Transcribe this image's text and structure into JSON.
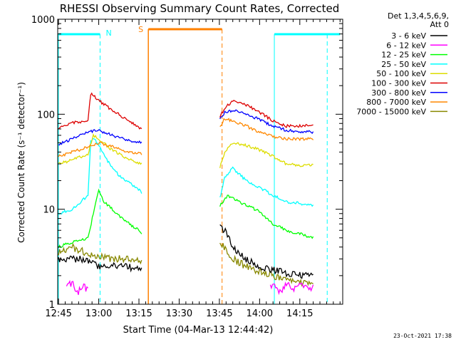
{
  "chart_data": {
    "type": "line",
    "title": "RHESSI Observing Summary Count Rates, Corrected",
    "xlabel": "Start Time (04-Mar-13 12:44:42)",
    "ylabel": "Corrected Count Rate (s⁻¹ detector⁻¹)",
    "yscale": "log",
    "ylim": [
      1,
      1000
    ],
    "x_ticks": [
      "12:45",
      "13:00",
      "13:15",
      "13:30",
      "13:45",
      "14:00",
      "14:15"
    ],
    "x_tick_minutes": [
      45,
      60,
      75,
      90,
      105,
      120,
      135
    ],
    "xlim_minutes": [
      44.7,
      151
    ],
    "y_ticks": [
      "1",
      "10",
      "100",
      "1000"
    ],
    "y_tick_values": [
      1,
      10,
      100,
      1000
    ],
    "legend_header": [
      "Det 1,3,4,5,6,9,",
      "Att 0"
    ],
    "legend_position": "right",
    "series": [
      {
        "name": "3 - 6 keV",
        "color": "#000000",
        "x": [
          45,
          55,
          60,
          70,
          76,
          105.2,
          108,
          110,
          115,
          120,
          125,
          130,
          135,
          140
        ],
        "y": [
          3.0,
          3.0,
          2.5,
          2.5,
          2.3,
          6.5,
          5.5,
          4.0,
          3.0,
          2.5,
          2.3,
          2.1,
          2.0,
          2.0
        ]
      },
      {
        "name": "6 - 12 keV",
        "color": "#ff00ff",
        "x": [
          48,
          50,
          52,
          54,
          56,
          124,
          126,
          128,
          130,
          132,
          134,
          136,
          138,
          140
        ],
        "y": [
          1.5,
          1.7,
          1.3,
          1.6,
          1.4,
          1.5,
          1.6,
          1.3,
          1.7,
          1.4,
          1.5,
          1.6,
          1.4,
          1.5
        ]
      },
      {
        "name": "12 - 25 keV",
        "color": "#00ff00",
        "x": [
          45,
          50,
          56,
          60,
          62,
          66,
          70,
          75,
          76,
          105.2,
          108,
          110,
          115,
          120,
          125,
          130,
          135,
          140
        ],
        "y": [
          4.0,
          4.5,
          5.0,
          16,
          12,
          9.5,
          7.5,
          6.0,
          5.6,
          11,
          14,
          13,
          11,
          9.5,
          7.0,
          6.0,
          5.5,
          5.0
        ]
      },
      {
        "name": "25 - 50 keV",
        "color": "#00ffff",
        "x": [
          45,
          50,
          56,
          57,
          58,
          60,
          63,
          66,
          70,
          74,
          76,
          105.2,
          107,
          110,
          115,
          120,
          125,
          130,
          135,
          140
        ],
        "y": [
          9.0,
          10,
          14,
          52,
          55,
          48,
          33,
          25,
          20,
          17,
          15,
          13,
          22,
          27,
          20,
          17,
          14,
          12,
          11.5,
          11
        ]
      },
      {
        "name": "50 - 100 keV",
        "color": "#dddd00",
        "x": [
          45,
          50,
          56,
          58,
          60,
          65,
          70,
          76,
          105.2,
          107,
          110,
          115,
          120,
          125,
          130,
          135,
          140
        ],
        "y": [
          30,
          33,
          38,
          60,
          55,
          42,
          35,
          30,
          28,
          40,
          50,
          47,
          42,
          36,
          30,
          29,
          29
        ]
      },
      {
        "name": "100 - 300 keV",
        "color": "#dd0000",
        "x": [
          45,
          50,
          56,
          57,
          60,
          65,
          70,
          76,
          105.2,
          107,
          110,
          115,
          120,
          125,
          130,
          135,
          140
        ],
        "y": [
          72,
          82,
          85,
          165,
          140,
          110,
          90,
          70,
          95,
          115,
          140,
          125,
          105,
          85,
          75,
          75,
          78
        ]
      },
      {
        "name": "300 - 800 keV",
        "color": "#0000ff",
        "x": [
          45,
          50,
          56,
          60,
          65,
          70,
          76,
          105.2,
          107,
          110,
          115,
          120,
          125,
          130,
          135,
          140
        ],
        "y": [
          48,
          55,
          65,
          68,
          60,
          54,
          50,
          90,
          105,
          110,
          100,
          88,
          75,
          68,
          65,
          65
        ]
      },
      {
        "name": "800 - 7000 keV",
        "color": "#ff8800",
        "x": [
          45,
          50,
          56,
          60,
          65,
          70,
          76,
          105.2,
          107,
          110,
          115,
          120,
          125,
          130,
          135,
          140
        ],
        "y": [
          36,
          40,
          45,
          50,
          46,
          41,
          38,
          75,
          90,
          85,
          75,
          65,
          58,
          55,
          55,
          55
        ]
      },
      {
        "name": "7000 - 15000 keV",
        "color": "#888800",
        "x": [
          45,
          50,
          55,
          60,
          65,
          70,
          76,
          105.2,
          108,
          110,
          115,
          120,
          125,
          130,
          135,
          140
        ],
        "y": [
          3.5,
          4.0,
          3.5,
          3.2,
          3.0,
          3.0,
          2.8,
          4.5,
          3.5,
          3.0,
          2.5,
          2.2,
          2.0,
          1.8,
          1.7,
          1.6
        ]
      }
    ],
    "annotations": {
      "night_marker": "N",
      "saa_marker": "S",
      "night_color": "#00ffff",
      "saa_color": "#ff8000",
      "night_intervals": [
        [
          45,
          60.5
        ],
        [
          125.5,
          150
        ]
      ],
      "saa_interval": [
        78.5,
        106
      ],
      "data_gap": [
        77,
        104.5
      ]
    }
  },
  "footer": {
    "timestamp": "23-Oct-2021 17:38"
  }
}
